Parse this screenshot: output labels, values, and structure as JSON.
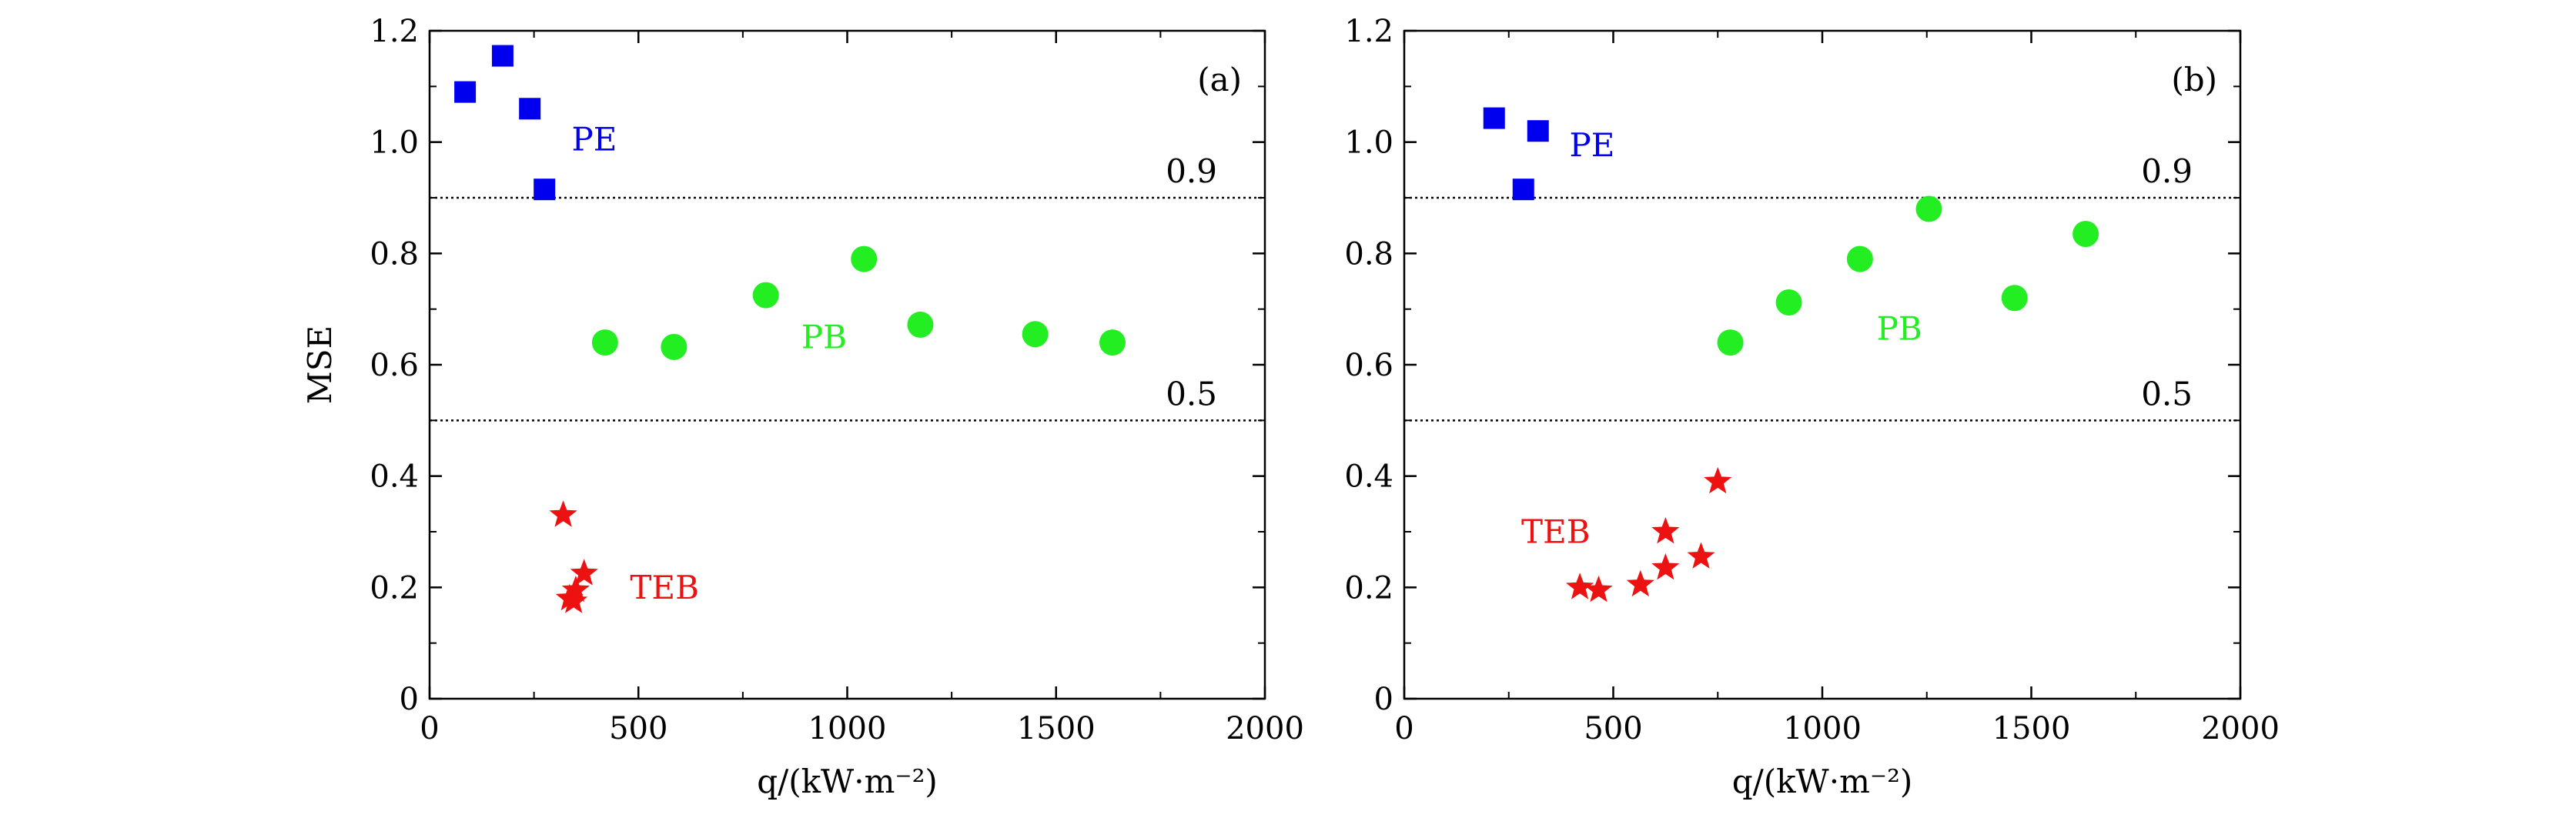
{
  "chart_data": [
    {
      "type": "scatter",
      "panel_label": "(a)",
      "xlabel": "q/(kW·m⁻²)",
      "ylabel": "MSE",
      "xlim": [
        0,
        2000
      ],
      "ylim": [
        0,
        1.2
      ],
      "x_ticks": [
        "0",
        "500",
        "1000",
        "1500",
        "2000"
      ],
      "y_ticks": [
        "0",
        "0.2",
        "0.4",
        "0.6",
        "0.8",
        "1.0",
        "1.2"
      ],
      "x_tick_values": [
        0,
        500,
        1000,
        1500,
        2000
      ],
      "y_tick_values": [
        0,
        0.2,
        0.4,
        0.6,
        0.8,
        1.0,
        1.2
      ],
      "reference_lines": [
        {
          "y": 0.9,
          "label": "0.9",
          "style": "dotted"
        },
        {
          "y": 0.5,
          "label": "0.5",
          "style": "dotted"
        }
      ],
      "series": [
        {
          "name": "PE",
          "marker": "square",
          "color": "#0000ee",
          "points": [
            [
              85,
              1.09
            ],
            [
              175,
              1.155
            ],
            [
              240,
              1.06
            ],
            [
              275,
              0.915
            ]
          ]
        },
        {
          "name": "PB",
          "marker": "circle",
          "color": "#22ee22",
          "points": [
            [
              420,
              0.64
            ],
            [
              585,
              0.632
            ],
            [
              805,
              0.725
            ],
            [
              1040,
              0.79
            ],
            [
              1175,
              0.672
            ],
            [
              1450,
              0.655
            ],
            [
              1635,
              0.64
            ]
          ]
        },
        {
          "name": "TEB",
          "marker": "star",
          "color": "#ee1111",
          "points": [
            [
              320,
              0.33
            ],
            [
              370,
              0.225
            ],
            [
              350,
              0.195
            ],
            [
              335,
              0.18
            ],
            [
              345,
              0.175
            ]
          ]
        }
      ],
      "series_labels": [
        {
          "text": "PE",
          "x": 340,
          "y": 0.985,
          "color": "#0000ee"
        },
        {
          "text": "PB",
          "x": 890,
          "y": 0.63,
          "color": "#22ee22"
        },
        {
          "text": "TEB",
          "x": 480,
          "y": 0.18,
          "color": "#ee1111"
        }
      ]
    },
    {
      "type": "scatter",
      "panel_label": "(b)",
      "xlabel": "q/(kW·m⁻²)",
      "ylabel": "",
      "xlim": [
        0,
        2000
      ],
      "ylim": [
        0,
        1.2
      ],
      "x_ticks": [
        "0",
        "500",
        "1000",
        "1500",
        "2000"
      ],
      "y_ticks": [
        "0",
        "0.2",
        "0.4",
        "0.6",
        "0.8",
        "1.0",
        "1.2"
      ],
      "x_tick_values": [
        0,
        500,
        1000,
        1500,
        2000
      ],
      "y_tick_values": [
        0,
        0.2,
        0.4,
        0.6,
        0.8,
        1.0,
        1.2
      ],
      "reference_lines": [
        {
          "y": 0.9,
          "label": "0.9",
          "style": "dotted"
        },
        {
          "y": 0.5,
          "label": "0.5",
          "style": "dotted"
        }
      ],
      "series": [
        {
          "name": "PE",
          "marker": "square",
          "color": "#0000ee",
          "points": [
            [
              215,
              1.043
            ],
            [
              320,
              1.02
            ],
            [
              285,
              0.915
            ]
          ]
        },
        {
          "name": "PB",
          "marker": "circle",
          "color": "#22ee22",
          "points": [
            [
              780,
              0.64
            ],
            [
              920,
              0.712
            ],
            [
              1090,
              0.79
            ],
            [
              1255,
              0.88
            ],
            [
              1460,
              0.72
            ],
            [
              1630,
              0.835
            ]
          ]
        },
        {
          "name": "TEB",
          "marker": "star",
          "color": "#ee1111",
          "points": [
            [
              420,
              0.2
            ],
            [
              465,
              0.195
            ],
            [
              565,
              0.205
            ],
            [
              625,
              0.235
            ],
            [
              625,
              0.3
            ],
            [
              710,
              0.255
            ],
            [
              750,
              0.39
            ]
          ]
        }
      ],
      "series_labels": [
        {
          "text": "PE",
          "x": 395,
          "y": 0.975,
          "color": "#0000ee"
        },
        {
          "text": "PB",
          "x": 1130,
          "y": 0.645,
          "color": "#22ee22"
        },
        {
          "text": "TEB",
          "x": 280,
          "y": 0.28,
          "color": "#ee1111"
        }
      ]
    }
  ]
}
